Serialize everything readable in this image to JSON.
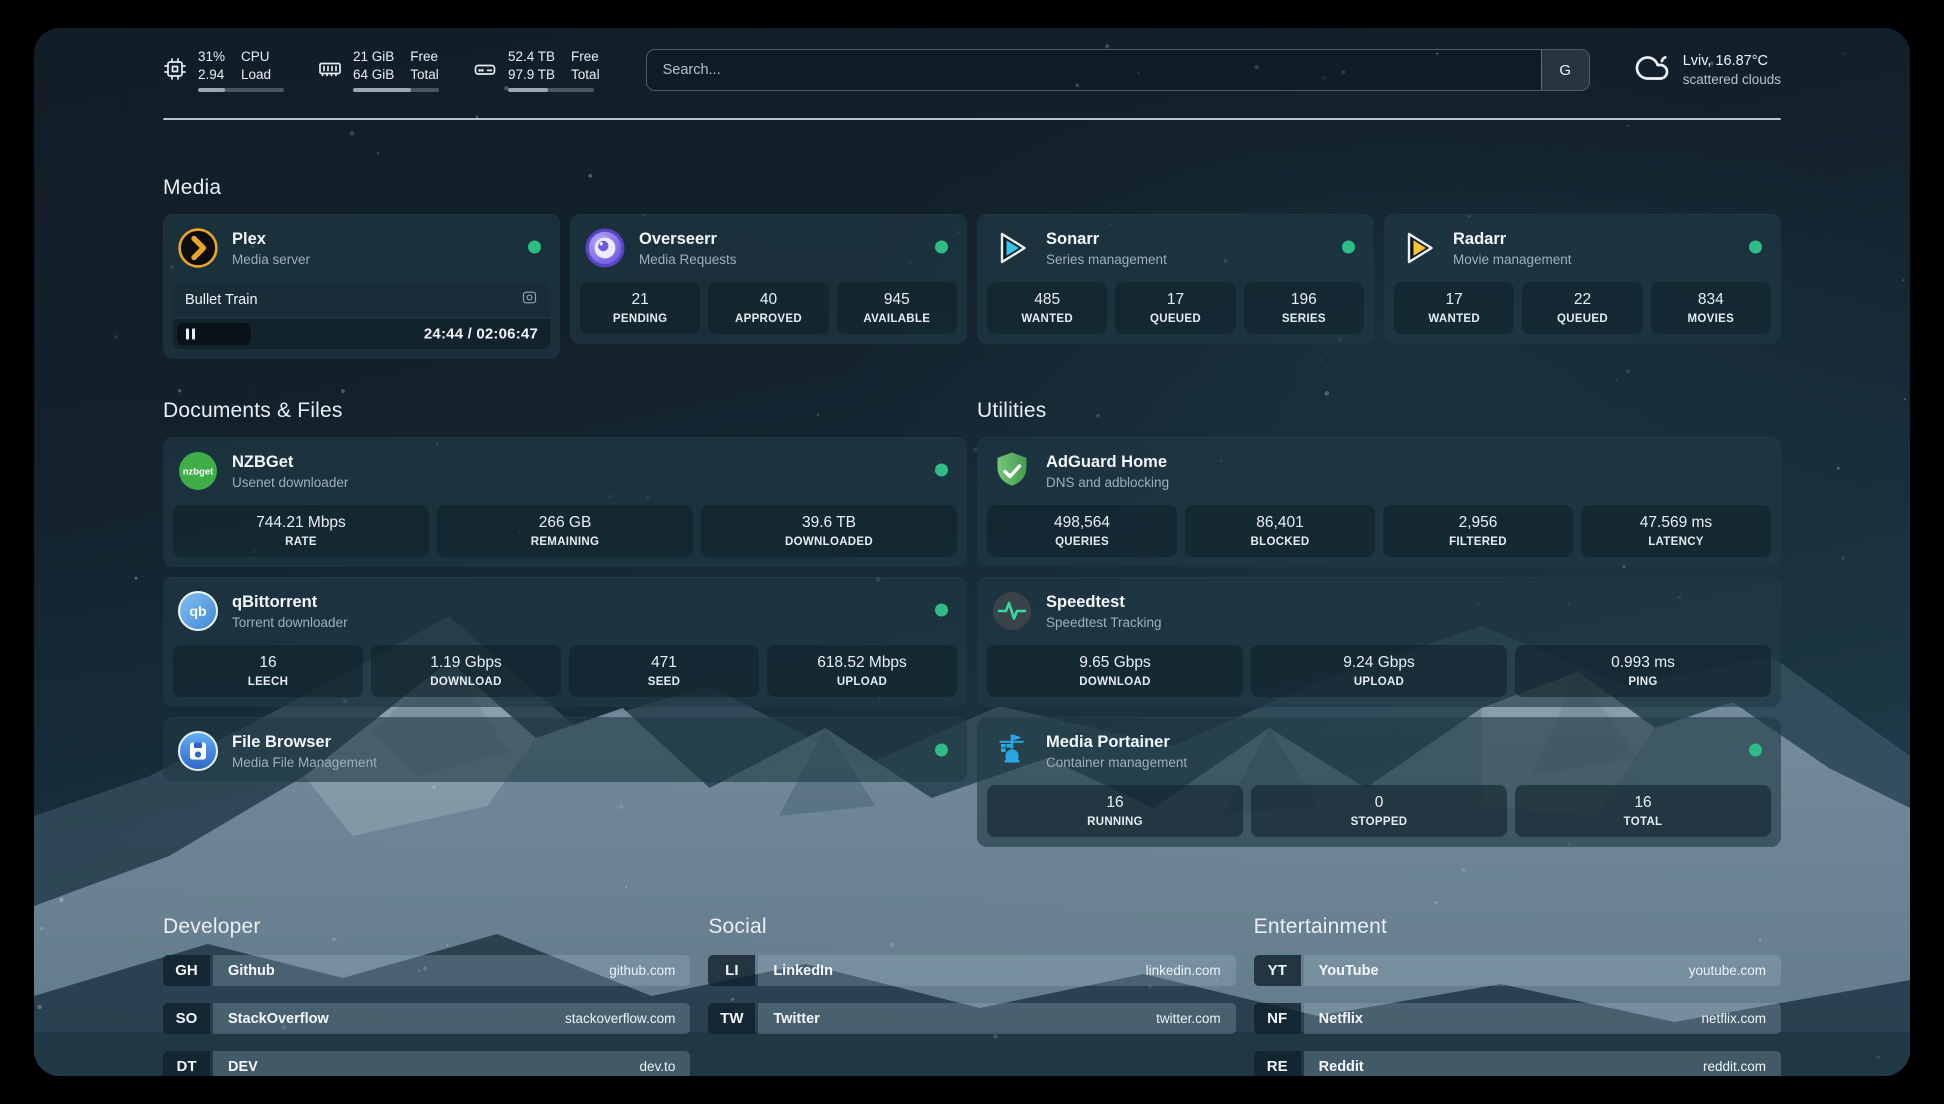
{
  "topbar": {
    "resources": [
      {
        "id": "cpu",
        "icon": "cpu-icon",
        "values": [
          "31%",
          "2.94"
        ],
        "labels": [
          "CPU",
          "Load"
        ],
        "progress_pct": 31
      },
      {
        "id": "memory",
        "icon": "memory-icon",
        "values": [
          "21 GiB",
          "64 GiB"
        ],
        "labels": [
          "Free",
          "Total"
        ],
        "progress_pct": 67
      },
      {
        "id": "disk",
        "icon": "disk-icon",
        "values": [
          "52.4 TB",
          "97.9 TB"
        ],
        "labels": [
          "Free",
          "Total"
        ],
        "progress_pct": 46
      }
    ],
    "search": {
      "placeholder": "Search...",
      "button_label": "G"
    },
    "weather": {
      "location_temp": "Lviv, 16.87°C",
      "condition": "scattered clouds"
    }
  },
  "sections": {
    "media": {
      "title": "Media",
      "services": [
        {
          "id": "plex",
          "name": "Plex",
          "desc": "Media server",
          "icon": "plex",
          "online": true,
          "now_playing": {
            "title": "Bullet Train",
            "elapsed": "24:44",
            "total": "02:06:47",
            "progress_pct": 19.5
          }
        },
        {
          "id": "overseerr",
          "name": "Overseerr",
          "desc": "Media Requests",
          "icon": "overseerr",
          "online": true,
          "stats": [
            {
              "value": "21",
              "label": "PENDING"
            },
            {
              "value": "40",
              "label": "APPROVED"
            },
            {
              "value": "945",
              "label": "AVAILABLE"
            }
          ]
        },
        {
          "id": "sonarr",
          "name": "Sonarr",
          "desc": "Series management",
          "icon": "sonarr",
          "online": true,
          "stats": [
            {
              "value": "485",
              "label": "WANTED"
            },
            {
              "value": "17",
              "label": "QUEUED"
            },
            {
              "value": "196",
              "label": "SERIES"
            }
          ]
        },
        {
          "id": "radarr",
          "name": "Radarr",
          "desc": "Movie management",
          "icon": "radarr",
          "online": true,
          "stats": [
            {
              "value": "17",
              "label": "WANTED"
            },
            {
              "value": "22",
              "label": "QUEUED"
            },
            {
              "value": "834",
              "label": "MOVIES"
            }
          ]
        }
      ]
    },
    "documents": {
      "title": "Documents & Files",
      "services": [
        {
          "id": "nzbget",
          "name": "NZBGet",
          "desc": "Usenet downloader",
          "icon": "nzbget",
          "online": true,
          "stats": [
            {
              "value": "744.21 Mbps",
              "label": "RATE"
            },
            {
              "value": "266 GB",
              "label": "REMAINING"
            },
            {
              "value": "39.6 TB",
              "label": "DOWNLOADED"
            }
          ]
        },
        {
          "id": "qbittorrent",
          "name": "qBittorrent",
          "desc": "Torrent downloader",
          "icon": "qbittorrent",
          "online": true,
          "stats": [
            {
              "value": "16",
              "label": "LEECH"
            },
            {
              "value": "1.19 Gbps",
              "label": "DOWNLOAD"
            },
            {
              "value": "471",
              "label": "SEED"
            },
            {
              "value": "618.52 Mbps",
              "label": "UPLOAD"
            }
          ]
        },
        {
          "id": "filebrowser",
          "name": "File Browser",
          "desc": "Media File Management",
          "icon": "filebrowser",
          "online": true
        }
      ]
    },
    "utilities": {
      "title": "Utilities",
      "services": [
        {
          "id": "adguard",
          "name": "AdGuard Home",
          "desc": "DNS and adblocking",
          "icon": "adguard",
          "online": false,
          "stats": [
            {
              "value": "498,564",
              "label": "QUERIES"
            },
            {
              "value": "86,401",
              "label": "BLOCKED"
            },
            {
              "value": "2,956",
              "label": "FILTERED"
            },
            {
              "value": "47.569 ms",
              "label": "LATENCY"
            }
          ]
        },
        {
          "id": "speedtest",
          "name": "Speedtest",
          "desc": "Speedtest Tracking",
          "icon": "speedtest",
          "online": false,
          "stats": [
            {
              "value": "9.65 Gbps",
              "label": "DOWNLOAD"
            },
            {
              "value": "9.24 Gbps",
              "label": "UPLOAD"
            },
            {
              "value": "0.993 ms",
              "label": "PING"
            }
          ]
        },
        {
          "id": "portainer",
          "name": "Media Portainer",
          "desc": "Container management",
          "icon": "portainer",
          "online": true,
          "stats": [
            {
              "value": "16",
              "label": "RUNNING"
            },
            {
              "value": "0",
              "label": "STOPPED"
            },
            {
              "value": "16",
              "label": "TOTAL"
            }
          ]
        }
      ]
    },
    "bookmarks": [
      {
        "title": "Developer",
        "links": [
          {
            "abbr": "GH",
            "name": "Github",
            "domain": "github.com"
          },
          {
            "abbr": "SO",
            "name": "StackOverflow",
            "domain": "stackoverflow.com"
          },
          {
            "abbr": "DT",
            "name": "DEV",
            "domain": "dev.to"
          }
        ]
      },
      {
        "title": "Social",
        "links": [
          {
            "abbr": "LI",
            "name": "LinkedIn",
            "domain": "linkedin.com"
          },
          {
            "abbr": "TW",
            "name": "Twitter",
            "domain": "twitter.com"
          }
        ]
      },
      {
        "title": "Entertainment",
        "links": [
          {
            "abbr": "YT",
            "name": "YouTube",
            "domain": "youtube.com"
          },
          {
            "abbr": "NF",
            "name": "Netflix",
            "domain": "netflix.com"
          },
          {
            "abbr": "RE",
            "name": "Reddit",
            "domain": "reddit.com"
          }
        ]
      }
    ]
  },
  "colors": {
    "status_online": "#2dbd85",
    "plex_orange": "#e9a52d",
    "sonarr_blue": "#33c4f0",
    "radarr_gold": "#fdc331",
    "speedtest_pulse": "#35dba0",
    "portainer_blue": "#28a7e0"
  }
}
